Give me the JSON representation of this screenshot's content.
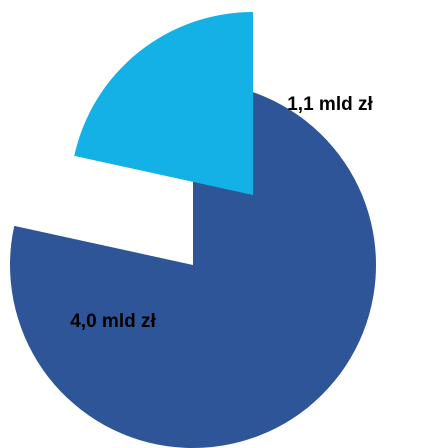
{
  "chart_data": {
    "type": "pie",
    "exploded": true,
    "slices": [
      {
        "label": "4,0 mld zł",
        "value": 4.0,
        "color": "#2E5597"
      },
      {
        "label": "1,1 mld zł",
        "value": 1.1,
        "color": "#14B1E7"
      }
    ]
  }
}
